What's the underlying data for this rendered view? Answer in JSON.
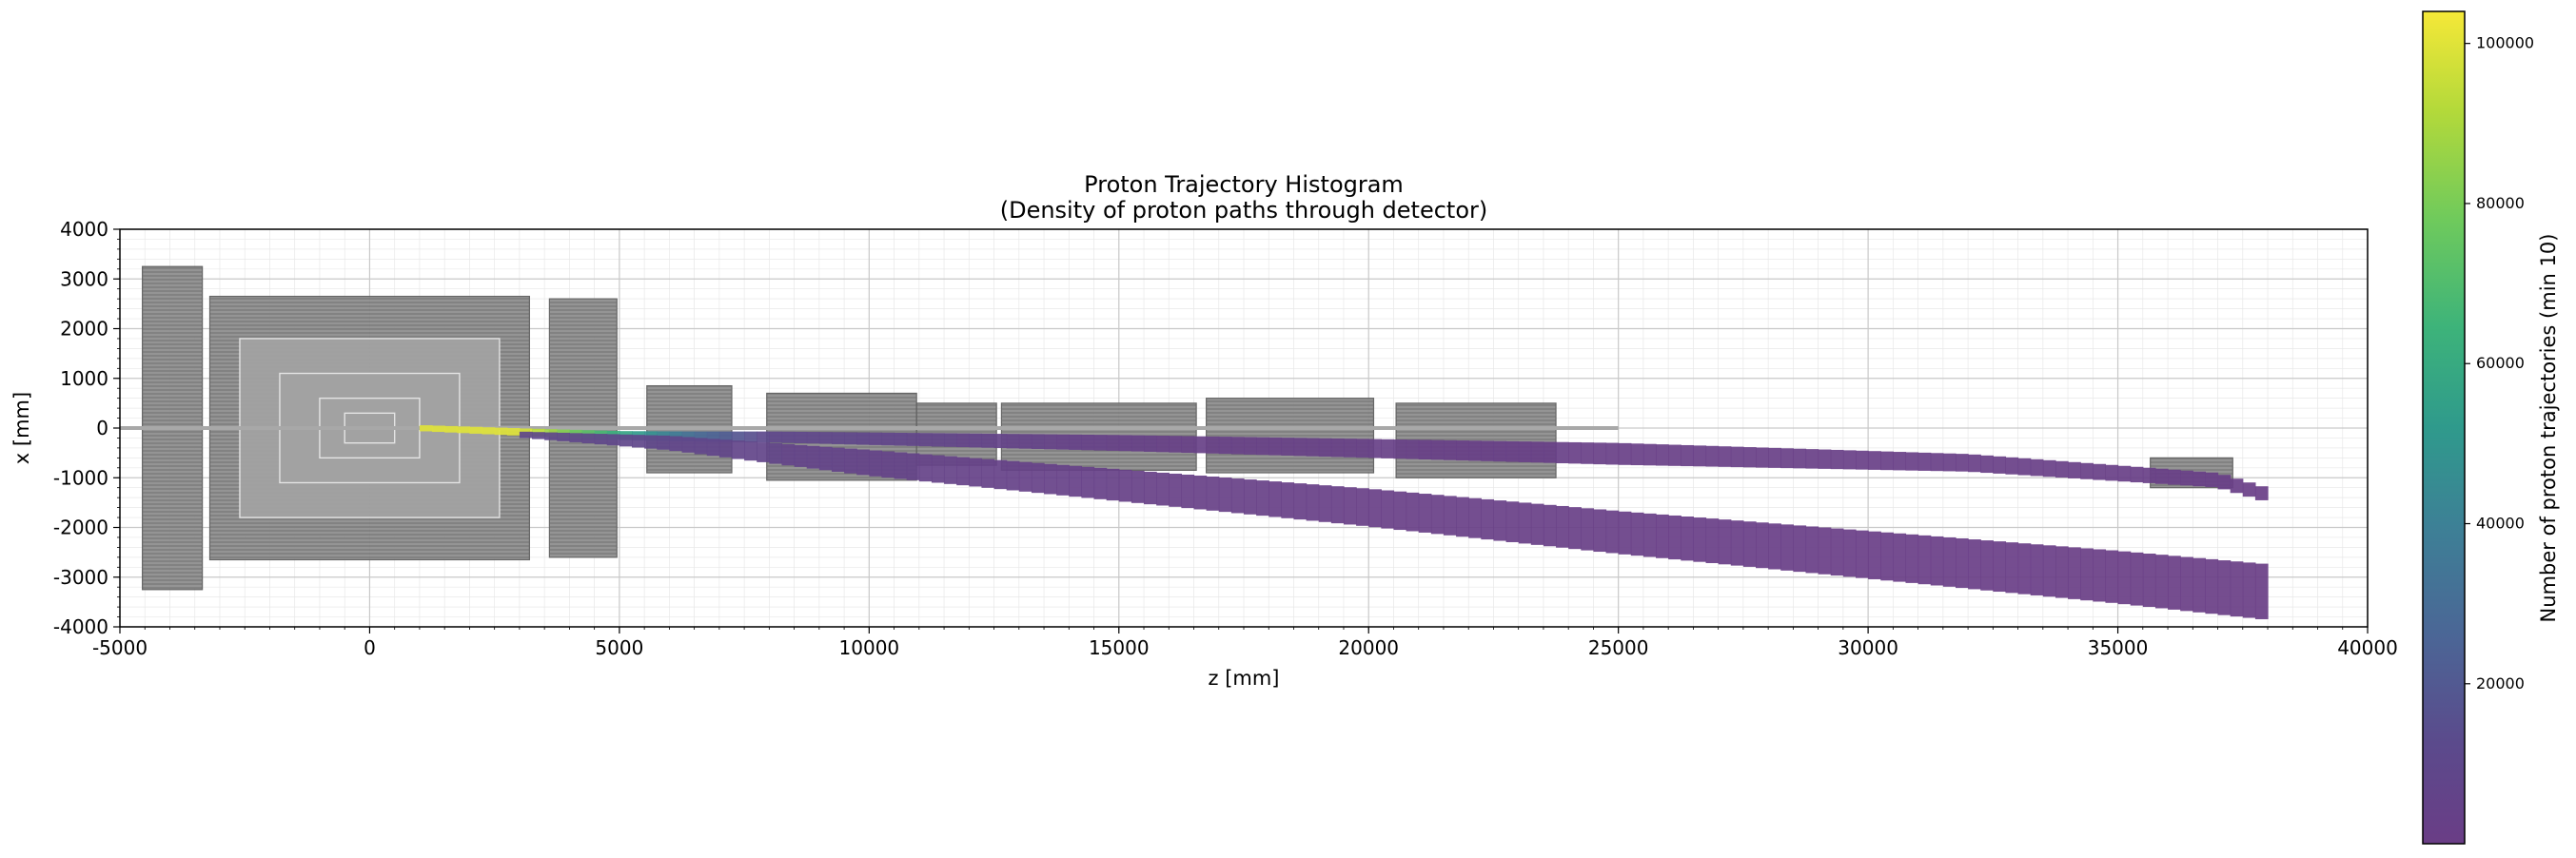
{
  "chart_data": {
    "type": "heatmap",
    "title": "Proton Trajectory Histogram",
    "subtitle": "(Density of proton paths through detector)",
    "xlabel": "z [mm]",
    "ylabel": "x [mm]",
    "xlim": [
      -5000,
      40000
    ],
    "ylim": [
      -4000,
      4000
    ],
    "x_ticks": [
      -5000,
      0,
      5000,
      10000,
      15000,
      20000,
      25000,
      30000,
      35000,
      40000
    ],
    "y_ticks": [
      -4000,
      -3000,
      -2000,
      -1000,
      0,
      1000,
      2000,
      3000,
      4000
    ],
    "grid": true,
    "colormap": "viridis",
    "colorbar": {
      "label": "Number of proton trajectories (min 10)",
      "range": [
        10,
        104000
      ],
      "ticks": [
        20000,
        40000,
        60000,
        80000,
        100000
      ]
    },
    "density_bands": [
      {
        "points": [
          [
            1000,
            0,
            100000
          ],
          [
            3000,
            -80,
            100000
          ],
          [
            5000,
            -150,
            60000
          ],
          [
            6500,
            -170,
            30000
          ],
          [
            8000,
            -180,
            10000
          ],
          [
            15000,
            -300,
            3000
          ],
          [
            25000,
            -520,
            2000
          ],
          [
            32000,
            -700,
            1500
          ],
          [
            37000,
            -1050,
            1500
          ],
          [
            38000,
            -1350,
            1000
          ]
        ],
        "half_width": [
          [
            1000,
            60
          ],
          [
            5000,
            90
          ],
          [
            15000,
            160
          ],
          [
            25000,
            220
          ],
          [
            38000,
            140
          ]
        ]
      },
      {
        "points": [
          [
            3000,
            -130,
            10000
          ],
          [
            6000,
            -300,
            8000
          ],
          [
            10000,
            -700,
            5000
          ],
          [
            15000,
            -1150,
            3000
          ],
          [
            20000,
            -1600,
            2000
          ],
          [
            25000,
            -2100,
            1500
          ],
          [
            30000,
            -2550,
            1200
          ],
          [
            35000,
            -3000,
            1000
          ],
          [
            38000,
            -3300,
            800
          ]
        ],
        "half_width": [
          [
            3000,
            60
          ],
          [
            10000,
            260
          ],
          [
            20000,
            380
          ],
          [
            30000,
            480
          ],
          [
            38000,
            560
          ]
        ]
      }
    ],
    "detector_overlay": {
      "color": "#8c8c8c",
      "blocks_mm": [
        [
          -4550,
          -3350,
          -3250,
          3250
        ],
        [
          -3200,
          3200,
          -2650,
          2650
        ],
        [
          3600,
          4950,
          -2600,
          2600
        ],
        [
          5550,
          7250,
          -900,
          850
        ],
        [
          7950,
          10950,
          -1050,
          700
        ],
        [
          10950,
          12550,
          -750,
          500
        ],
        [
          12650,
          16550,
          -850,
          500
        ],
        [
          16750,
          20100,
          -900,
          600
        ],
        [
          20550,
          23750,
          -1000,
          500
        ],
        [
          35650,
          37300,
          -1200,
          -600
        ]
      ],
      "beam_pipe": [
        -5000,
        25000
      ]
    }
  }
}
